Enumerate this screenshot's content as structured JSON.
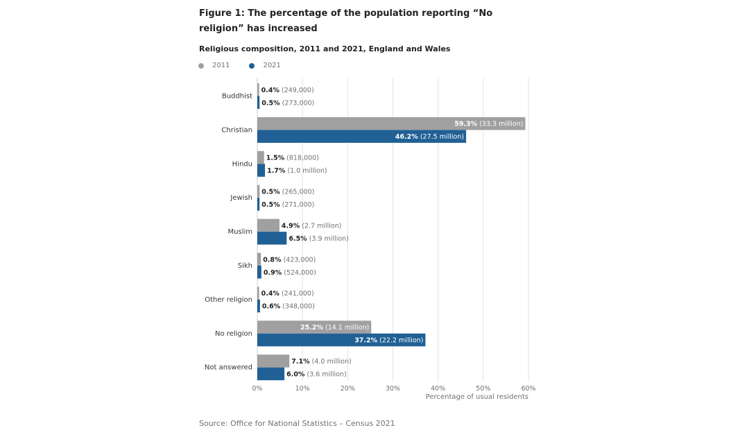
{
  "title": "Figure 1: The percentage of the population reporting “No religion” has increased",
  "subtitle": "Religious composition, 2011 and 2021, England and Wales",
  "legend": [
    {
      "label": "2011",
      "color": "#a0a0a0"
    },
    {
      "label": "2021",
      "color": "#206095"
    }
  ],
  "source": "Source: Office for National Statistics – Census 2021",
  "chart_data": {
    "type": "bar",
    "orientation": "horizontal",
    "categories": [
      "Buddhist",
      "Christian",
      "Hindu",
      "Jewish",
      "Muslim",
      "Sikh",
      "Other religion",
      "No religion",
      "Not answered"
    ],
    "series": [
      {
        "name": "2011",
        "color": "#a0a0a0",
        "values": [
          0.4,
          59.3,
          1.5,
          0.5,
          4.9,
          0.8,
          0.4,
          25.2,
          7.1
        ],
        "counts": [
          "(249,000)",
          "(33.3 million)",
          "(818,000)",
          "(265,000)",
          "(2.7 million)",
          "(423,000)",
          "(241,000)",
          "(14.1 million)",
          "(4.0 million)"
        ]
      },
      {
        "name": "2021",
        "color": "#206095",
        "values": [
          0.5,
          46.2,
          1.7,
          0.5,
          6.5,
          0.9,
          0.6,
          37.2,
          6.0
        ],
        "counts": [
          "(273,000)",
          "(27.5 million)",
          "(1.0 million)",
          "(271,000)",
          "(3.9 million)",
          "(524,000)",
          "(348,000)",
          "(22.2 million)",
          "(3.6 million)"
        ]
      }
    ],
    "xlim": [
      0,
      60
    ],
    "xticks": [
      0,
      10,
      20,
      30,
      40,
      50,
      60
    ],
    "tick_suffix": "%",
    "value_suffix": "%",
    "xlabel": "Percentage of usual residents",
    "grid": true,
    "legend_position": "top-left"
  }
}
